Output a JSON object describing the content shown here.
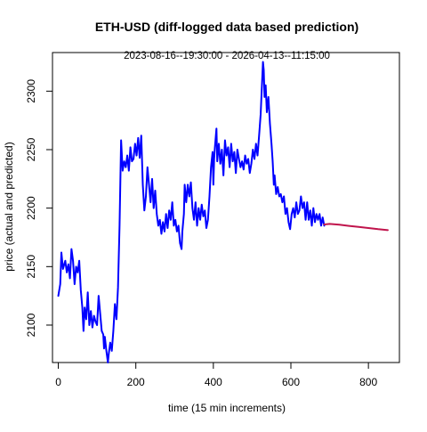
{
  "chart_data": {
    "type": "line",
    "title": "ETH-USD (diff-logged data based prediction)",
    "subtitle": "2023-08-16--19:30:00  -  2026-04-13--11:15:00",
    "xlabel": "time (15 min increments)",
    "ylabel": "price (actual and predicted)",
    "xlim": [
      -15,
      880
    ],
    "ylim": [
      2068,
      2333
    ],
    "xticks": [
      0,
      200,
      400,
      600,
      800
    ],
    "yticks": [
      2100,
      2150,
      2200,
      2250,
      2300
    ],
    "grid": false,
    "legend": "none",
    "series": [
      {
        "role": "actual",
        "color": "#0000ff",
        "points": [
          [
            0,
            2125
          ],
          [
            5,
            2135
          ],
          [
            8,
            2162
          ],
          [
            12,
            2148
          ],
          [
            18,
            2155
          ],
          [
            22,
            2145
          ],
          [
            26,
            2152
          ],
          [
            30,
            2140
          ],
          [
            34,
            2165
          ],
          [
            38,
            2155
          ],
          [
            42,
            2135
          ],
          [
            46,
            2150
          ],
          [
            50,
            2145
          ],
          [
            54,
            2155
          ],
          [
            58,
            2130
          ],
          [
            62,
            2115
          ],
          [
            65,
            2095
          ],
          [
            68,
            2115
          ],
          [
            72,
            2105
          ],
          [
            76,
            2128
          ],
          [
            80,
            2100
          ],
          [
            84,
            2112
          ],
          [
            88,
            2098
          ],
          [
            92,
            2108
          ],
          [
            96,
            2103
          ],
          [
            100,
            2100
          ],
          [
            104,
            2125
          ],
          [
            108,
            2110
          ],
          [
            112,
            2095
          ],
          [
            116,
            2092
          ],
          [
            118,
            2080
          ],
          [
            120,
            2090
          ],
          [
            124,
            2078
          ],
          [
            128,
            2068
          ],
          [
            130,
            2075
          ],
          [
            134,
            2085
          ],
          [
            138,
            2078
          ],
          [
            142,
            2095
          ],
          [
            146,
            2118
          ],
          [
            150,
            2105
          ],
          [
            154,
            2132
          ],
          [
            158,
            2185
          ],
          [
            162,
            2258
          ],
          [
            166,
            2232
          ],
          [
            170,
            2240
          ],
          [
            174,
            2235
          ],
          [
            178,
            2245
          ],
          [
            182,
            2232
          ],
          [
            186,
            2252
          ],
          [
            190,
            2240
          ],
          [
            194,
            2242
          ],
          [
            198,
            2255
          ],
          [
            202,
            2245
          ],
          [
            206,
            2260
          ],
          [
            210,
            2243
          ],
          [
            214,
            2262
          ],
          [
            218,
            2220
          ],
          [
            222,
            2198
          ],
          [
            226,
            2210
          ],
          [
            230,
            2235
          ],
          [
            234,
            2220
          ],
          [
            238,
            2205
          ],
          [
            242,
            2225
          ],
          [
            246,
            2200
          ],
          [
            250,
            2215
          ],
          [
            254,
            2195
          ],
          [
            258,
            2185
          ],
          [
            262,
            2190
          ],
          [
            266,
            2178
          ],
          [
            270,
            2188
          ],
          [
            274,
            2180
          ],
          [
            278,
            2195
          ],
          [
            282,
            2183
          ],
          [
            286,
            2198
          ],
          [
            290,
            2190
          ],
          [
            294,
            2205
          ],
          [
            298,
            2185
          ],
          [
            302,
            2190
          ],
          [
            306,
            2180
          ],
          [
            310,
            2185
          ],
          [
            314,
            2170
          ],
          [
            318,
            2165
          ],
          [
            320,
            2180
          ],
          [
            324,
            2195
          ],
          [
            326,
            2220
          ],
          [
            330,
            2205
          ],
          [
            334,
            2220
          ],
          [
            338,
            2210
          ],
          [
            342,
            2222
          ],
          [
            346,
            2200
          ],
          [
            350,
            2190
          ],
          [
            354,
            2205
          ],
          [
            358,
            2185
          ],
          [
            362,
            2200
          ],
          [
            366,
            2190
          ],
          [
            370,
            2203
          ],
          [
            374,
            2193
          ],
          [
            378,
            2198
          ],
          [
            382,
            2183
          ],
          [
            386,
            2190
          ],
          [
            390,
            2210
          ],
          [
            394,
            2235
          ],
          [
            398,
            2248
          ],
          [
            400,
            2220
          ],
          [
            402,
            2242
          ],
          [
            404,
            2252
          ],
          [
            408,
            2268
          ],
          [
            410,
            2240
          ],
          [
            414,
            2255
          ],
          [
            418,
            2238
          ],
          [
            422,
            2250
          ],
          [
            426,
            2228
          ],
          [
            430,
            2258
          ],
          [
            434,
            2245
          ],
          [
            438,
            2252
          ],
          [
            442,
            2235
          ],
          [
            446,
            2255
          ],
          [
            450,
            2240
          ],
          [
            454,
            2248
          ],
          [
            458,
            2230
          ],
          [
            462,
            2250
          ],
          [
            466,
            2242
          ],
          [
            470,
            2235
          ],
          [
            474,
            2240
          ],
          [
            478,
            2233
          ],
          [
            482,
            2245
          ],
          [
            486,
            2238
          ],
          [
            490,
            2242
          ],
          [
            494,
            2230
          ],
          [
            498,
            2238
          ],
          [
            502,
            2250
          ],
          [
            506,
            2242
          ],
          [
            510,
            2255
          ],
          [
            514,
            2245
          ],
          [
            518,
            2262
          ],
          [
            522,
            2280
          ],
          [
            526,
            2310
          ],
          [
            528,
            2325
          ],
          [
            530,
            2318
          ],
          [
            532,
            2295
          ],
          [
            535,
            2305
          ],
          [
            538,
            2282
          ],
          [
            542,
            2295
          ],
          [
            546,
            2272
          ],
          [
            550,
            2255
          ],
          [
            553,
            2240
          ],
          [
            556,
            2220
          ],
          [
            558,
            2228
          ],
          [
            562,
            2212
          ],
          [
            566,
            2218
          ],
          [
            570,
            2210
          ],
          [
            574,
            2212
          ],
          [
            578,
            2205
          ],
          [
            582,
            2210
          ],
          [
            586,
            2195
          ],
          [
            590,
            2200
          ],
          [
            594,
            2188
          ],
          [
            598,
            2182
          ],
          [
            602,
            2195
          ],
          [
            606,
            2200
          ],
          [
            610,
            2192
          ],
          [
            614,
            2205
          ],
          [
            618,
            2195
          ],
          [
            622,
            2198
          ],
          [
            626,
            2210
          ],
          [
            630,
            2200
          ],
          [
            634,
            2205
          ],
          [
            638,
            2190
          ],
          [
            642,
            2205
          ],
          [
            646,
            2190
          ],
          [
            650,
            2198
          ],
          [
            654,
            2185
          ],
          [
            658,
            2200
          ],
          [
            662,
            2188
          ],
          [
            666,
            2195
          ],
          [
            670,
            2190
          ],
          [
            674,
            2195
          ],
          [
            678,
            2185
          ],
          [
            682,
            2192
          ],
          [
            686,
            2185
          ]
        ]
      },
      {
        "role": "predicted",
        "color": "#c0144c",
        "points": [
          [
            686,
            2186
          ],
          [
            700,
            2186.5
          ],
          [
            725,
            2185.8
          ],
          [
            750,
            2184.8
          ],
          [
            775,
            2183.9
          ],
          [
            800,
            2183
          ],
          [
            825,
            2182
          ],
          [
            850,
            2181.2
          ]
        ]
      }
    ]
  }
}
